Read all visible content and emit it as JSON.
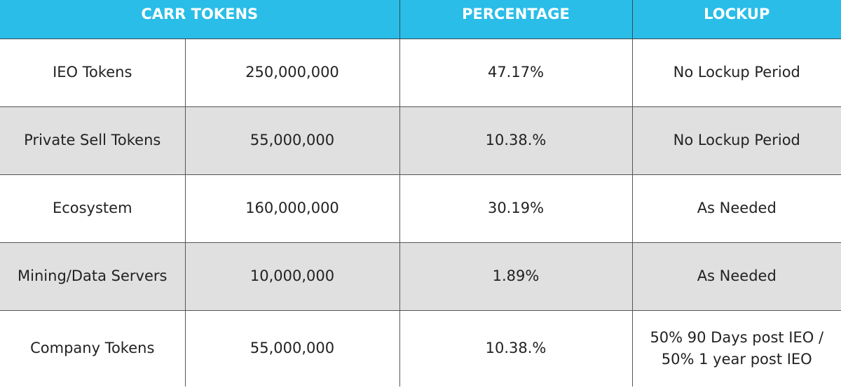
{
  "table": {
    "header": [
      "CARR TOKENS",
      "PERCENTAGE",
      "LOCKUP"
    ],
    "rows": [
      [
        "IEO Tokens",
        "250,000,000",
        "47.17%",
        "No Lockup Period"
      ],
      [
        "Private Sell Tokens",
        "55,000,000",
        "10.38.%",
        "No Lockup Period"
      ],
      [
        "Ecosystem",
        "160,000,000",
        "30.19%",
        "As Needed"
      ],
      [
        "Mining/Data Servers",
        "10,000,000",
        "1.89%",
        "As Needed"
      ],
      [
        "Company Tokens",
        "55,000,000",
        "10.38.%",
        "50% 90 Days post IEO / 50% 1 year post IEO"
      ]
    ]
  }
}
